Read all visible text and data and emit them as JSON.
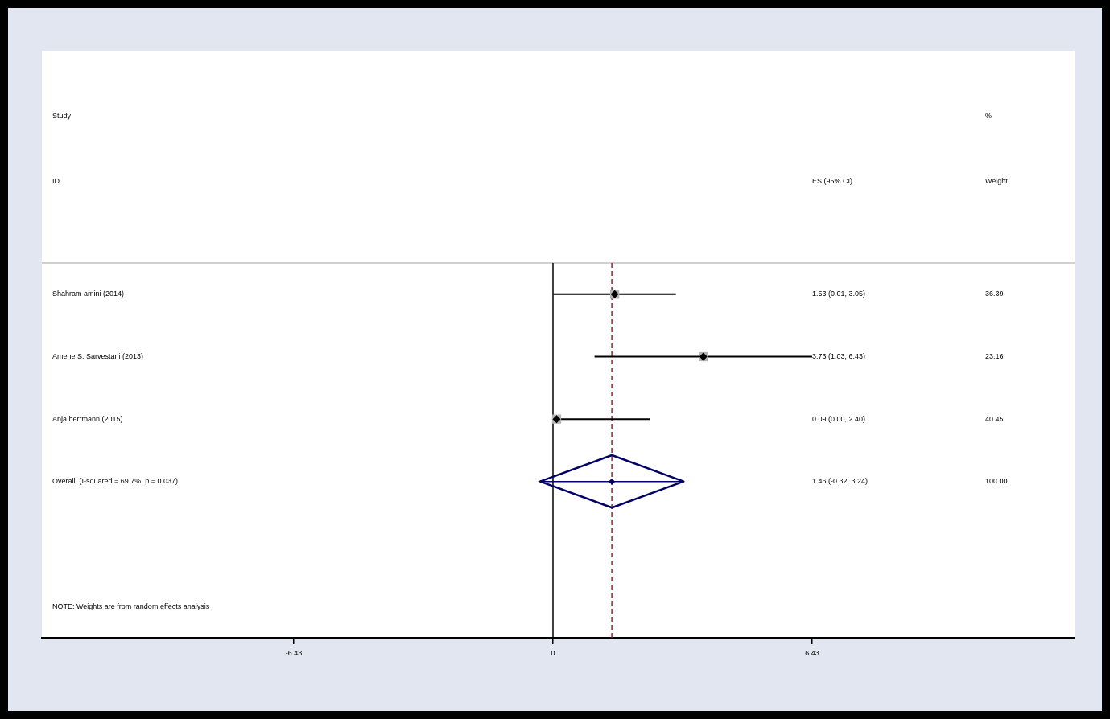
{
  "chart_data": {
    "type": "scatter",
    "orientation": "horizontal",
    "categories": [
      "Shahram amini (2014)",
      "Amene S. Sarvestani (2013)",
      "Anja herrmann (2015)",
      "Overall  (I-squared = 69.7%, p = 0.037)",
      null,
      null
    ],
    "xlim": [
      -12.68,
      12.94
    ],
    "xticks": [
      -6.43,
      0,
      6.43
    ],
    "annotations": [
      "Study",
      "ID",
      "ES (95% CI)",
      "%",
      "Weight",
      "NOTE: Weights are from random effects analysis",
      "1.53 (0.01, 3.05)",
      "36.39",
      "3.73 (1.03, 6.43)",
      "23.16",
      "0.09 (0.00, 2.40)",
      "40.45",
      "1.46 (-0.32, 3.24)",
      "100.00"
    ],
    "ref_lines": [
      {
        "axis": "x",
        "value": 0,
        "color": "#000000",
        "line_style": "solid"
      },
      {
        "axis": "x",
        "value": 1.46,
        "color": "#8b2a3a",
        "line_style": "dashed"
      }
    ],
    "series": [
      {
        "marker": "square",
        "color": "#b4b4b4",
        "values": [
          1.53,
          3.73,
          0.09,
          null,
          null,
          null
        ],
        "errors": [
          [
            0.01,
            3.05
          ],
          [
            1.03,
            6.43
          ],
          [
            0.0,
            2.4
          ],
          null,
          null,
          null
        ]
      },
      {
        "marker": "diamond",
        "color": "#000066",
        "values": [
          null,
          null,
          null,
          1.46,
          null,
          null
        ],
        "errors": [
          null,
          null,
          null,
          [
            -0.32,
            3.24
          ],
          null,
          null
        ]
      }
    ]
  }
}
